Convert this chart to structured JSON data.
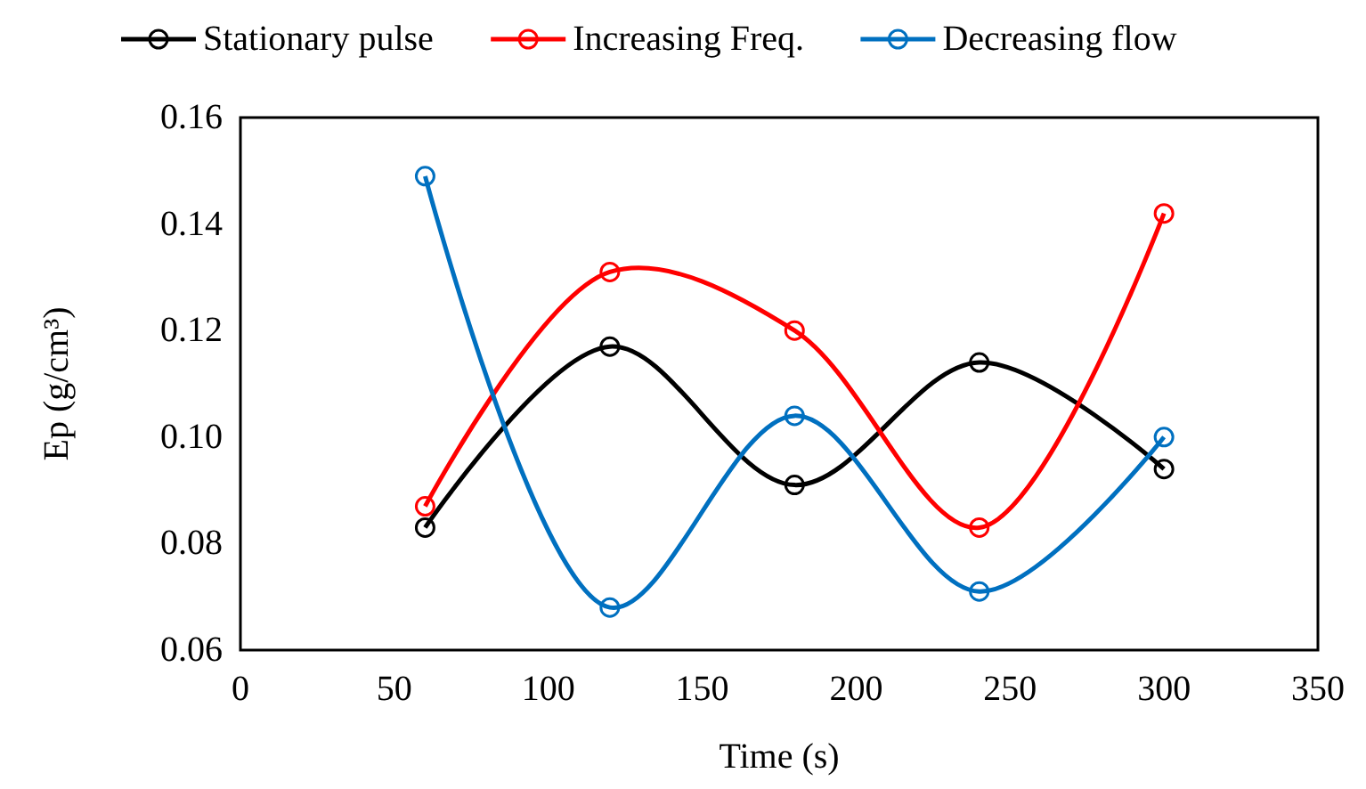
{
  "chart_data": {
    "type": "line",
    "xlabel": "Time (s)",
    "ylabel": "Ep (g/cm³)",
    "x": [
      60,
      120,
      180,
      240,
      300
    ],
    "series": [
      {
        "name": "Stationary pulse",
        "color": "#000000",
        "values": [
          0.083,
          0.117,
          0.091,
          0.114,
          0.094
        ]
      },
      {
        "name": "Increasing Freq.",
        "color": "#ff0000",
        "values": [
          0.087,
          0.131,
          0.12,
          0.083,
          0.142
        ]
      },
      {
        "name": "Decreasing flow",
        "color": "#0070c0",
        "values": [
          0.149,
          0.068,
          0.104,
          0.071,
          0.1
        ]
      }
    ],
    "xlim": [
      0,
      350
    ],
    "xticks": [
      0,
      50,
      100,
      150,
      200,
      250,
      300,
      350
    ],
    "ylim": [
      0.06,
      0.16
    ],
    "yticks": [
      {
        "value": 0.06,
        "label": "0.06"
      },
      {
        "value": 0.08,
        "label": "0.08"
      },
      {
        "value": 0.1,
        "label": "0.10"
      },
      {
        "value": 0.12,
        "label": "0.12"
      },
      {
        "value": 0.14,
        "label": "0.14"
      },
      {
        "value": 0.16,
        "label": "0.16"
      }
    ],
    "grid": false,
    "legend": "top",
    "marker": "circle",
    "line_style": "solid"
  }
}
